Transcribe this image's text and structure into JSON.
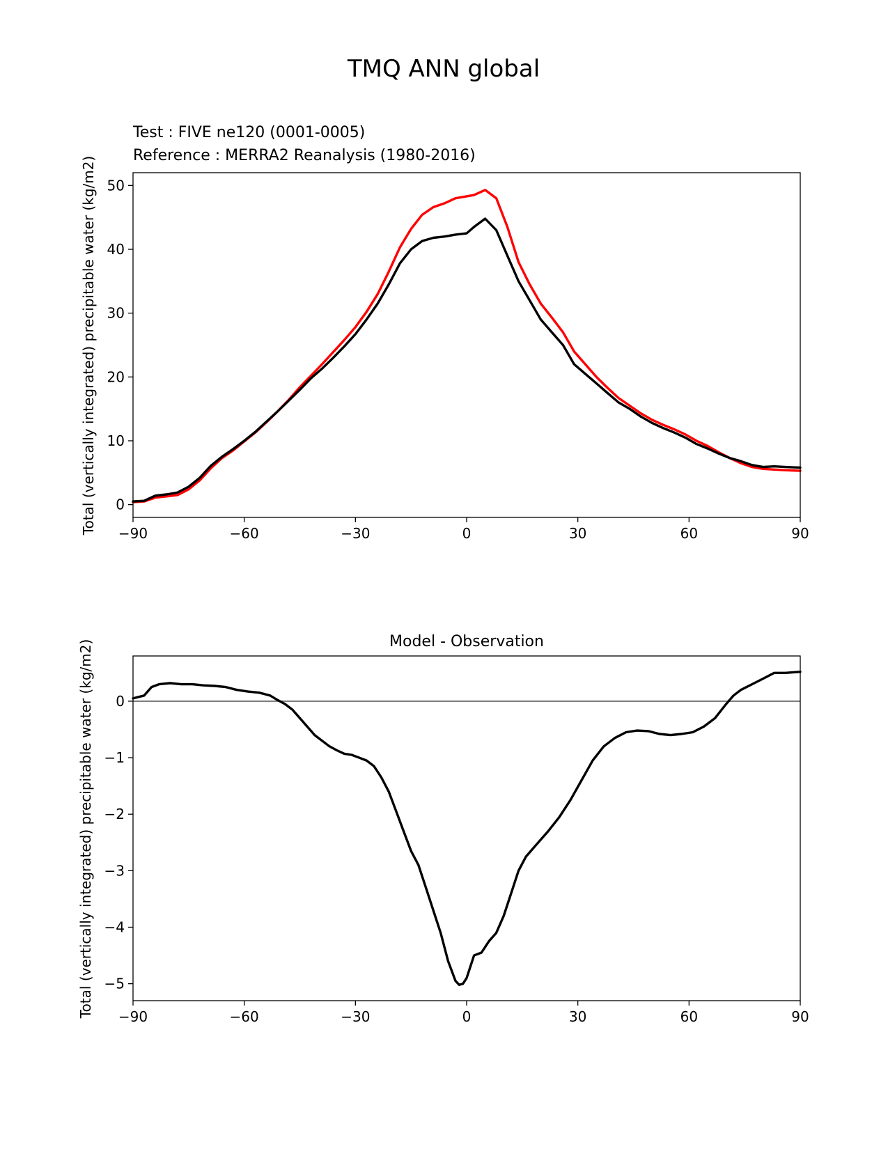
{
  "figure": {
    "title": "TMQ ANN global"
  },
  "chart_data": [
    {
      "type": "line",
      "title_test": "Test : FIVE ne120 (0001-0005)",
      "title_ref": "Reference : MERRA2 Reanalysis (1980-2016)",
      "xlabel": "",
      "ylabel": "Total (vertically integrated) precipitable water (kg/m2)",
      "xlim": [
        -90,
        90
      ],
      "ylim": [
        -2,
        52
      ],
      "xticks": [
        -90,
        -60,
        -30,
        0,
        30,
        60,
        90
      ],
      "xtick_labels": [
        "−90",
        "−60",
        "−30",
        "0",
        "30",
        "60",
        "90"
      ],
      "yticks": [
        0,
        10,
        20,
        30,
        40,
        50
      ],
      "ytick_labels": [
        "0",
        "10",
        "20",
        "30",
        "40",
        "50"
      ],
      "colors": {
        "test": "#000000",
        "reference": "#ff0000"
      },
      "x": [
        -90,
        -87,
        -84,
        -81,
        -78,
        -75,
        -72,
        -69,
        -66,
        -63,
        -60,
        -57,
        -54,
        -51,
        -48,
        -45,
        -42,
        -39,
        -36,
        -33,
        -30,
        -27,
        -24,
        -21,
        -18,
        -15,
        -12,
        -9,
        -6,
        -3,
        0,
        2,
        5,
        8,
        11,
        14,
        17,
        20,
        23,
        26,
        29,
        32,
        35,
        38,
        41,
        44,
        47,
        50,
        53,
        56,
        59,
        62,
        65,
        68,
        71,
        74,
        77,
        80,
        83,
        86,
        90
      ],
      "series": [
        {
          "name": "Test : FIVE ne120 (0001-0005)",
          "color": "#000000",
          "values": [
            0.5,
            0.6,
            1.4,
            1.6,
            1.9,
            2.8,
            4.2,
            6.1,
            7.5,
            8.7,
            10.0,
            11.4,
            13.0,
            14.6,
            16.3,
            18.0,
            19.8,
            21.3,
            23.0,
            24.8,
            26.7,
            29.0,
            31.5,
            34.5,
            37.8,
            40.0,
            41.3,
            41.8,
            42.0,
            42.3,
            42.5,
            43.5,
            44.8,
            43.0,
            39.0,
            35.0,
            32.0,
            29.0,
            27.0,
            25.0,
            22.0,
            20.5,
            19.0,
            17.5,
            16.0,
            15.0,
            13.8,
            12.8,
            12.0,
            11.3,
            10.5,
            9.5,
            8.8,
            8.0,
            7.3,
            6.8,
            6.2,
            5.9,
            6.0,
            5.9,
            5.8
          ]
        },
        {
          "name": "Reference : MERRA2 Reanalysis (1980-2016)",
          "color": "#ff0000",
          "values": [
            0.4,
            0.5,
            1.1,
            1.3,
            1.5,
            2.4,
            3.8,
            5.7,
            7.3,
            8.5,
            9.9,
            11.3,
            12.9,
            14.6,
            16.4,
            18.4,
            20.2,
            22.0,
            23.9,
            25.8,
            27.8,
            30.2,
            33.0,
            36.5,
            40.3,
            43.2,
            45.4,
            46.6,
            47.2,
            48.0,
            48.3,
            48.5,
            49.3,
            48.0,
            43.5,
            38.0,
            34.5,
            31.5,
            29.3,
            27.0,
            24.0,
            22.0,
            20.0,
            18.3,
            16.7,
            15.5,
            14.3,
            13.3,
            12.5,
            11.8,
            11.0,
            10.0,
            9.2,
            8.2,
            7.3,
            6.5,
            5.9,
            5.6,
            5.5,
            5.4,
            5.3
          ]
        }
      ]
    },
    {
      "type": "line",
      "title": "Model - Observation",
      "xlabel": "",
      "ylabel": "Total (vertically integrated) precipitable water (kg/m2)",
      "xlim": [
        -90,
        90
      ],
      "ylim": [
        -5.3,
        0.8
      ],
      "xticks": [
        -90,
        -60,
        -30,
        0,
        30,
        60,
        90
      ],
      "xtick_labels": [
        "−90",
        "−60",
        "−30",
        "0",
        "30",
        "60",
        "90"
      ],
      "yticks": [
        -5,
        -4,
        -3,
        -2,
        -1,
        0
      ],
      "ytick_labels": [
        "−5",
        "−4",
        "−3",
        "−2",
        "−1",
        "0"
      ],
      "zero_line_color": "#808080",
      "x": [
        -90,
        -87,
        -85,
        -83,
        -80,
        -77,
        -74,
        -71,
        -68,
        -65,
        -62,
        -59,
        -56,
        -53,
        -51,
        -49,
        -47,
        -45,
        -43,
        -41,
        -39,
        -37,
        -35,
        -33,
        -31,
        -29,
        -27,
        -25,
        -23,
        -21,
        -19,
        -17,
        -15,
        -13,
        -11,
        -9,
        -7,
        -5,
        -3,
        -2,
        -1,
        0,
        1,
        2,
        4,
        5,
        6,
        8,
        10,
        12,
        14,
        16,
        18,
        20,
        22,
        25,
        28,
        31,
        34,
        37,
        40,
        43,
        46,
        49,
        52,
        55,
        58,
        61,
        64,
        67,
        70,
        72,
        74,
        77,
        80,
        83,
        86,
        90
      ],
      "series": [
        {
          "name": "Model - Observation",
          "color": "#000000",
          "values": [
            0.05,
            0.1,
            0.25,
            0.3,
            0.32,
            0.3,
            0.3,
            0.28,
            0.27,
            0.25,
            0.2,
            0.17,
            0.15,
            0.1,
            0.02,
            -0.05,
            -0.15,
            -0.3,
            -0.45,
            -0.6,
            -0.7,
            -0.8,
            -0.87,
            -0.93,
            -0.95,
            -1.0,
            -1.05,
            -1.15,
            -1.35,
            -1.6,
            -1.95,
            -2.3,
            -2.65,
            -2.9,
            -3.3,
            -3.7,
            -4.1,
            -4.6,
            -4.95,
            -5.02,
            -5.0,
            -4.9,
            -4.7,
            -4.5,
            -4.45,
            -4.35,
            -4.25,
            -4.1,
            -3.8,
            -3.4,
            -3.0,
            -2.75,
            -2.6,
            -2.45,
            -2.3,
            -2.05,
            -1.75,
            -1.4,
            -1.05,
            -0.8,
            -0.65,
            -0.55,
            -0.52,
            -0.53,
            -0.58,
            -0.6,
            -0.58,
            -0.55,
            -0.45,
            -0.3,
            -0.05,
            0.1,
            0.2,
            0.3,
            0.4,
            0.5,
            0.5,
            0.52
          ]
        }
      ]
    }
  ]
}
